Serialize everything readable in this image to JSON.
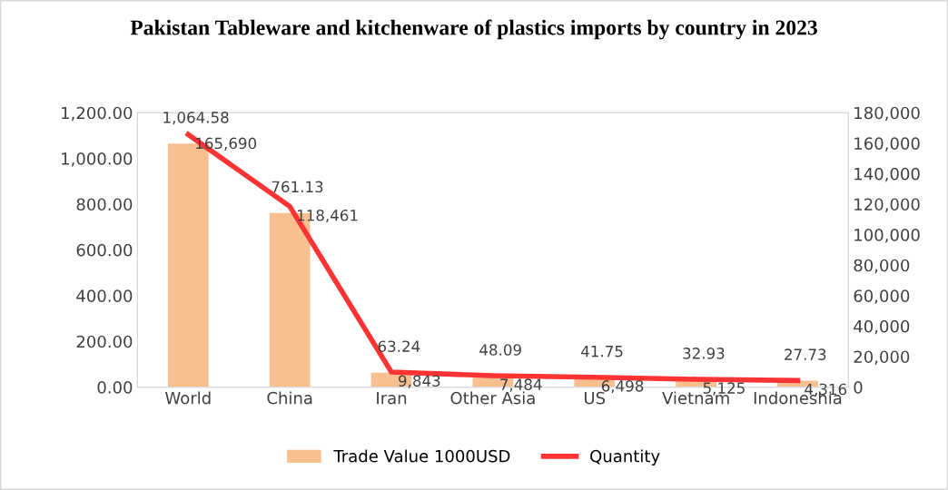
{
  "chart_data": {
    "type": "bar",
    "title": "Pakistan Tableware and kitchenware of plastics imports by country in 2023",
    "categories": [
      "World",
      "China",
      "Iran",
      "Other Asia",
      "US",
      "Vietnam",
      "Indoneshia"
    ],
    "series": [
      {
        "name": "Trade Value 1000USD",
        "color": "#f8bf90",
        "values": [
          1064.58,
          761.13,
          63.24,
          48.09,
          41.75,
          32.93,
          27.73
        ],
        "value_labels": [
          "1,064.58",
          "761.13",
          "63.24",
          "48.09",
          "41.75",
          "32.93",
          "27.73"
        ]
      },
      {
        "name": "Quantity",
        "type": "line",
        "axis": "y2",
        "color": "#ff3333",
        "values": [
          165690,
          118461,
          9843,
          7484,
          6498,
          5125,
          4316
        ],
        "value_labels": [
          "165,690",
          "118,461",
          "9,843",
          "7,484",
          "6,498",
          "5,125",
          "4,316"
        ]
      }
    ],
    "ylim": [
      0,
      1200
    ],
    "yticks": [
      {
        "value": 0,
        "label": "0.00"
      },
      {
        "value": 200,
        "label": "200.00"
      },
      {
        "value": 400,
        "label": "400.00"
      },
      {
        "value": 600,
        "label": "600.00"
      },
      {
        "value": 800,
        "label": "800.00"
      },
      {
        "value": 1000,
        "label": "1,000.00"
      },
      {
        "value": 1200,
        "label": "1,200.00"
      }
    ],
    "y2lim": [
      0,
      180000
    ],
    "y2ticks": [
      0,
      {
        "value": 20000,
        "label": "20,000"
      },
      {
        "value": 40000,
        "label": "40,000"
      },
      {
        "value": 60000,
        "label": "60,000"
      },
      {
        "value": 80000,
        "label": "80,000"
      },
      {
        "value": 100000,
        "label": "100,000"
      },
      {
        "value": 120000,
        "label": "120,000"
      },
      {
        "value": 140000,
        "label": "140,000"
      },
      {
        "value": 160000,
        "label": "160,000"
      },
      {
        "value": 180000,
        "label": "180,000"
      }
    ],
    "grid": false,
    "legend": "bottom",
    "marker": "none",
    "line_style": "solid"
  }
}
